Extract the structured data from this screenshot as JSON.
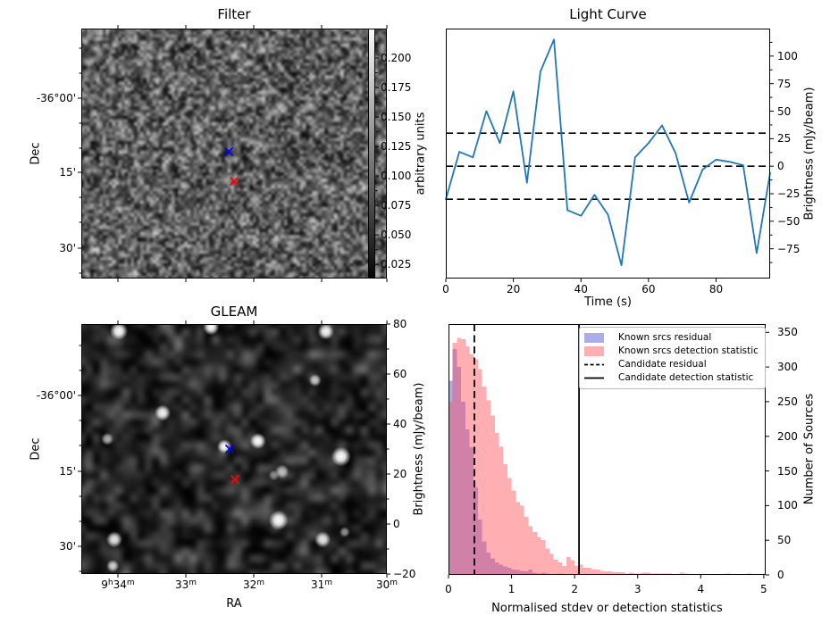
{
  "figure": {
    "background": "#ffffff"
  },
  "chart_data": [
    {
      "type": "heatmap",
      "panel": "top-left",
      "title": "Filter",
      "xlabel": "",
      "ylabel": "Dec",
      "x_tick_labels": [],
      "y_tick_labels": [
        "-36°00'",
        "15'",
        "30'"
      ],
      "description": "grayscale noise map of filtered sky image",
      "colorbar": {
        "label": "arbitrary units",
        "tick_values": [
          0.2,
          0.175,
          0.15,
          0.125,
          0.1,
          0.075,
          0.05,
          0.025
        ],
        "vmin": 0.013,
        "vmax": 0.225,
        "cmap": "gray"
      },
      "markers": [
        {
          "name": "blue-x-marker",
          "shape": "x",
          "color": "#0000ff",
          "fx": 0.4825,
          "fy": 0.4929
        },
        {
          "name": "red-x-marker",
          "shape": "x",
          "color": "#ff0000",
          "fx": 0.5,
          "fy": 0.6107
        }
      ]
    },
    {
      "type": "line",
      "panel": "top-right",
      "title": "Light Curve",
      "xlabel": "Time (s)",
      "ylabel": "Brightness (mJy/beam)",
      "x": [
        0,
        4,
        8,
        12,
        16,
        20,
        24,
        28,
        32,
        36,
        40,
        44,
        48,
        52,
        56,
        60,
        64,
        68,
        72,
        76,
        80,
        84,
        88,
        92,
        96
      ],
      "series": [
        {
          "color": "#1f77b4",
          "values": [
            -30,
            13,
            8,
            50,
            21,
            68,
            -15,
            86,
            115,
            -40,
            -45,
            -26,
            -44,
            -90,
            8,
            21,
            37,
            12,
            -33,
            -3,
            6,
            4,
            1,
            -79,
            -6
          ]
        }
      ],
      "hlines": [
        {
          "y": 30,
          "style": "dashed",
          "color": "#000000"
        },
        {
          "y": 0,
          "style": "dashed",
          "color": "#000000"
        },
        {
          "y": -30,
          "style": "dashed",
          "color": "#000000"
        }
      ],
      "xlim": [
        0,
        96
      ],
      "ylim": [
        -102,
        125
      ],
      "x_ticks": [
        0,
        20,
        40,
        60,
        80
      ],
      "y_ticks": [
        100,
        75,
        50,
        25,
        0,
        -25,
        -50,
        -75
      ],
      "y_axis_side": "right",
      "grid": false
    },
    {
      "type": "heatmap",
      "panel": "bottom-left",
      "title": "GLEAM",
      "xlabel": "RA",
      "ylabel": "Dec",
      "x_tick_labels": [
        "9h34m",
        "33m",
        "32m",
        "31m",
        "30m"
      ],
      "y_tick_labels": [
        "-36°00'",
        "15'",
        "30'"
      ],
      "description": "grayscale GLEAM sky image with point sources",
      "colorbar": {
        "label": "Brightness (mJy/beam)",
        "tick_values": [
          80,
          60,
          40,
          20,
          0,
          -20
        ],
        "vmin": -20,
        "vmax": 80,
        "cmap": "gray"
      },
      "markers": [
        {
          "name": "blue-x-marker",
          "shape": "x",
          "color": "#0000ff",
          "fx": 0.4854,
          "fy": 0.5
        },
        {
          "name": "red-x-marker",
          "shape": "x",
          "color": "#ff0000",
          "fx": 0.5029,
          "fy": 0.6214
        }
      ],
      "sources": [
        {
          "fx": 0.123,
          "fy": 0.028,
          "r": 10,
          "a": 1.0
        },
        {
          "fx": 0.425,
          "fy": 0.012,
          "r": 9,
          "a": 1.0
        },
        {
          "fx": 0.8,
          "fy": 0.03,
          "r": 9,
          "a": 0.95
        },
        {
          "fx": 0.266,
          "fy": 0.355,
          "r": 9,
          "a": 0.95
        },
        {
          "fx": 0.085,
          "fy": 0.46,
          "r": 7,
          "a": 0.65
        },
        {
          "fx": 0.468,
          "fy": 0.49,
          "r": 8,
          "a": 1.0
        },
        {
          "fx": 0.578,
          "fy": 0.468,
          "r": 9,
          "a": 1.0
        },
        {
          "fx": 0.765,
          "fy": 0.225,
          "r": 7,
          "a": 0.75
        },
        {
          "fx": 0.85,
          "fy": 0.53,
          "r": 11,
          "a": 1.0
        },
        {
          "fx": 0.657,
          "fy": 0.59,
          "r": 8,
          "a": 0.7
        },
        {
          "fx": 0.63,
          "fy": 0.605,
          "r": 6,
          "a": 0.5
        },
        {
          "fx": 0.645,
          "fy": 0.785,
          "r": 11,
          "a": 1.0
        },
        {
          "fx": 0.79,
          "fy": 0.862,
          "r": 9,
          "a": 0.9
        },
        {
          "fx": 0.108,
          "fy": 0.862,
          "r": 9,
          "a": 0.9
        },
        {
          "fx": 0.103,
          "fy": 0.968,
          "r": 7,
          "a": 0.8
        },
        {
          "fx": 0.862,
          "fy": 0.832,
          "r": 6,
          "a": 0.55
        }
      ]
    },
    {
      "type": "bar",
      "subtype": "histogram",
      "panel": "bottom-right",
      "title": "",
      "xlabel": "Normalised stdev or detection statistics",
      "ylabel": "Number of Sources",
      "bin_start": 0,
      "bin_width": 0.0667,
      "series": [
        {
          "name": "Known srcs residual",
          "color": "rgba(90,90,220,0.5)",
          "counts": [
            280,
            326,
            300,
            250,
            210,
            184,
            126,
            80,
            48,
            32,
            24,
            18,
            15,
            12,
            10,
            8,
            7,
            6,
            5,
            8,
            3,
            2,
            3,
            2,
            1,
            1,
            2,
            1,
            0,
            1,
            0,
            0,
            1,
            0,
            1,
            0,
            0,
            0,
            0,
            1,
            0,
            0,
            0,
            0,
            0,
            0,
            0,
            0,
            0,
            0,
            0,
            0,
            0,
            0,
            0,
            0,
            0,
            0,
            0,
            0,
            0,
            0,
            0,
            0,
            0,
            0,
            0,
            0,
            0,
            0,
            0,
            0,
            0,
            0,
            0
          ]
        },
        {
          "name": "Known srcs detection statistic",
          "color": "rgba(255,75,85,0.45)",
          "counts": [
            250,
            335,
            342,
            340,
            330,
            318,
            311,
            297,
            272,
            252,
            230,
            205,
            185,
            160,
            140,
            122,
            105,
            100,
            84,
            70,
            62,
            55,
            50,
            38,
            30,
            22,
            18,
            13,
            26,
            21,
            13,
            15,
            10,
            10,
            8,
            8,
            6,
            5,
            5,
            4,
            4,
            4,
            2,
            3,
            2,
            2,
            3,
            3,
            2,
            2,
            2,
            2,
            2,
            1,
            1,
            3,
            2,
            1,
            1,
            1,
            1,
            1,
            0,
            1,
            1,
            1,
            2,
            1,
            1,
            0,
            1,
            2,
            1,
            1,
            1
          ]
        }
      ],
      "vlines": [
        {
          "x": 0.41,
          "style": "dashed",
          "color": "#000000",
          "label": "Candidate residual"
        },
        {
          "x": 2.07,
          "style": "solid",
          "color": "#000000",
          "label": "Candidate detection statistic"
        }
      ],
      "xlim": [
        0,
        5.03
      ],
      "ylim": [
        0,
        362
      ],
      "x_ticks": [
        0,
        1,
        2,
        3,
        4,
        5
      ],
      "y_ticks": [
        0,
        50,
        100,
        150,
        200,
        250,
        300,
        350
      ],
      "y_axis_side": "right",
      "legend_position": "upper right",
      "grid": false
    }
  ]
}
